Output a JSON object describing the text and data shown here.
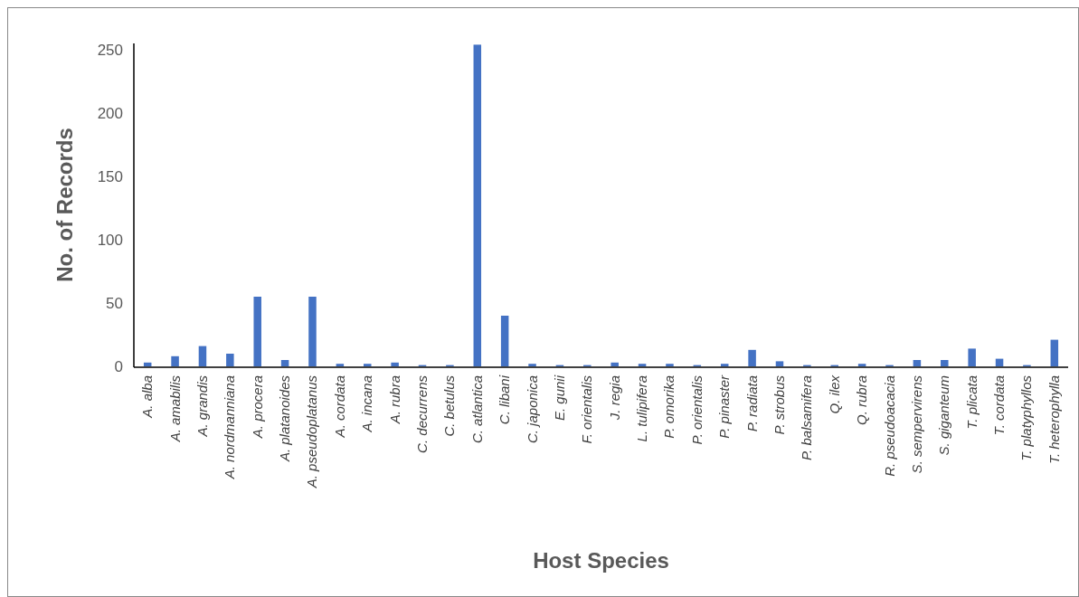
{
  "chart_data": {
    "type": "bar",
    "xlabel": "Host Species",
    "ylabel": "No. of Records",
    "categories": [
      "A. alba",
      "A. amabilis",
      "A. grandis",
      "A. nordmanniana",
      "A. procera",
      "A. platanoides",
      "A. pseudoplatanus",
      "A. cordata",
      "A. incana",
      "A. rubra",
      "C. decurrens",
      "C. betulus",
      "C. atlantica",
      "C. libani",
      "C. japonica",
      "E. gunii",
      "F. orientalis",
      "J. regia",
      "L. tulipifera",
      "P. omorika",
      "P. orientalis",
      "P. pinaster",
      "P. radiata",
      "P. strobus",
      "P. balsamifera",
      "Q. ilex",
      "Q. rubra",
      "R. pseudoacacia",
      "S. sempervirens",
      "S. giganteum",
      "T. plicata",
      "T. cordata",
      "T. platyphyllos",
      "T. heterophylla"
    ],
    "values": [
      3,
      8,
      16,
      10,
      55,
      5,
      55,
      2,
      2,
      3,
      1,
      1,
      254,
      40,
      2,
      1,
      1,
      3,
      2,
      2,
      1,
      2,
      13,
      4,
      1,
      1,
      2,
      1,
      5,
      5,
      14,
      6,
      1,
      21
    ],
    "color": "#4472c4",
    "ylim": [
      0,
      255
    ],
    "yticks": [
      0,
      50,
      100,
      150,
      200,
      250
    ],
    "grid": false
  }
}
